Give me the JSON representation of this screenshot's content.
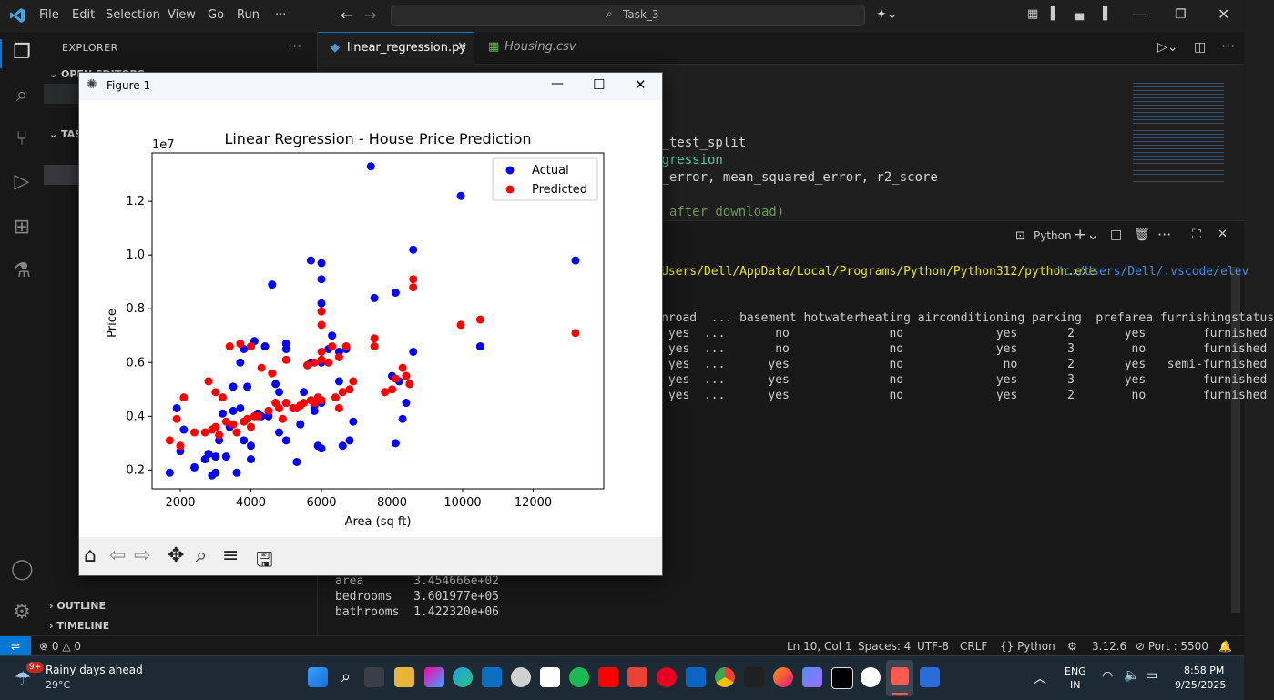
{
  "menubar": {
    "items": [
      "File",
      "Edit",
      "Selection",
      "View",
      "Go",
      "Run",
      "···"
    ],
    "search": "Task_3"
  },
  "sidebar": {
    "title": "EXPLORER",
    "open_editors": "OPEN EDITORS",
    "task_section": "TAS",
    "outline": "OUTLINE",
    "timeline": "TIMELINE"
  },
  "tabs": [
    {
      "label": "linear_regression.py",
      "icon": "python-icon"
    },
    {
      "label": "Housing.csv",
      "icon": "table-icon"
    }
  ],
  "code_lines": [
    "n_test_split",
    "egression",
    "e_error, mean_squared_error, r2_score",
    "",
    "n after download)"
  ],
  "panel": {
    "shell_label": "Python",
    "run_path_a": "Users/Dell/AppData/Local/Programs/Python/Python312/python.exe",
    "run_path_b": "\"c:/Users/Dell/.vscode/elev",
    "table_header": "nroad  ... basement hotwaterheating airconditioning parking  prefarea furnishingstatus",
    "table_rows": [
      " yes  ...       no              no             yes       2       yes        furnished",
      " yes  ...       no              no             yes       3        no        furnished",
      " yes  ...      yes              no              no       2       yes   semi-furnished",
      " yes  ...      yes              no             yes       3       yes        furnished",
      " yes  ...      yes              no             yes       2        no        furnished"
    ],
    "coef_rows": [
      "area       3.454666e+02",
      "bedrooms   3.601977e+05",
      "bathrooms  1.422320e+06"
    ]
  },
  "status": {
    "errors": "0",
    "warnings": "0",
    "ln_col": "Ln 10, Col 1",
    "spaces": "Spaces: 4",
    "encoding": "UTF-8",
    "eol": "CRLF",
    "language": "{} Python",
    "version": "3.12.6",
    "port": "Port : 5500"
  },
  "taskbar": {
    "weather_title": "Rainy days ahead",
    "weather_temp": "29°C",
    "badge": "9+",
    "lang_a": "ENG",
    "lang_b": "IN",
    "time": "8:58 PM",
    "date": "9/25/2025"
  },
  "figure": {
    "window_title": "Figure 1"
  },
  "chart_data": {
    "type": "scatter",
    "title": "Linear Regression - House Price Prediction",
    "xlabel": "Area (sq ft)",
    "ylabel": "Price",
    "y_offset_label": "1e7",
    "xlim": [
      1200,
      14000
    ],
    "ylim": [
      0.13,
      1.38
    ],
    "xticks": [
      2000,
      4000,
      6000,
      8000,
      10000,
      12000
    ],
    "yticks": [
      0.2,
      0.4,
      0.6,
      0.8,
      1.0,
      1.2
    ],
    "yticklabels": [
      "0.2",
      "0.4",
      "0.6",
      "0.8",
      "1.0",
      "1.2"
    ],
    "legend_position": "top-right",
    "series": [
      {
        "name": "Actual",
        "color": "#0000ff",
        "points": [
          [
            1700,
            0.19
          ],
          [
            1900,
            0.43
          ],
          [
            2000,
            0.27
          ],
          [
            2100,
            0.35
          ],
          [
            2400,
            0.21
          ],
          [
            2700,
            0.24
          ],
          [
            2800,
            0.26
          ],
          [
            2900,
            0.18
          ],
          [
            3000,
            0.19
          ],
          [
            3000,
            0.25
          ],
          [
            3100,
            0.31
          ],
          [
            3200,
            0.41
          ],
          [
            3300,
            0.25
          ],
          [
            3400,
            0.36
          ],
          [
            3500,
            0.51
          ],
          [
            3500,
            0.42
          ],
          [
            3600,
            0.19
          ],
          [
            3700,
            0.43
          ],
          [
            3700,
            0.6
          ],
          [
            3800,
            0.65
          ],
          [
            3800,
            0.31
          ],
          [
            3900,
            0.51
          ],
          [
            4000,
            0.29
          ],
          [
            4000,
            0.24
          ],
          [
            4100,
            0.68
          ],
          [
            4200,
            0.41
          ],
          [
            4300,
            0.4
          ],
          [
            4400,
            0.66
          ],
          [
            4500,
            0.42
          ],
          [
            4500,
            0.4
          ],
          [
            4600,
            0.89
          ],
          [
            4700,
            0.52
          ],
          [
            4800,
            0.34
          ],
          [
            4800,
            0.49
          ],
          [
            5000,
            0.45
          ],
          [
            5000,
            0.31
          ],
          [
            5000,
            0.65
          ],
          [
            5000,
            0.67
          ],
          [
            5200,
            0.43
          ],
          [
            5300,
            0.23
          ],
          [
            5400,
            0.37
          ],
          [
            5500,
            0.49
          ],
          [
            5700,
            0.6
          ],
          [
            5700,
            0.98
          ],
          [
            5800,
            0.42
          ],
          [
            5800,
            0.44
          ],
          [
            5900,
            0.29
          ],
          [
            6000,
            0.97
          ],
          [
            6000,
            0.91
          ],
          [
            6000,
            0.82
          ],
          [
            6000,
            0.6
          ],
          [
            6000,
            0.45
          ],
          [
            6000,
            0.28
          ],
          [
            6200,
            0.65
          ],
          [
            6300,
            0.7
          ],
          [
            6500,
            0.64
          ],
          [
            6500,
            0.53
          ],
          [
            6600,
            0.29
          ],
          [
            6700,
            0.65
          ],
          [
            6800,
            0.31
          ],
          [
            6900,
            0.38
          ],
          [
            7400,
            1.33
          ],
          [
            7500,
            0.84
          ],
          [
            7800,
            0.49
          ],
          [
            8000,
            0.55
          ],
          [
            8100,
            0.86
          ],
          [
            8100,
            0.3
          ],
          [
            8200,
            0.53
          ],
          [
            8300,
            0.39
          ],
          [
            8400,
            0.45
          ],
          [
            8500,
            0.52
          ],
          [
            8600,
            0.64
          ],
          [
            8600,
            1.02
          ],
          [
            9950,
            1.22
          ],
          [
            10500,
            0.66
          ],
          [
            13200,
            0.98
          ]
        ]
      },
      {
        "name": "Predicted",
        "color": "#ff0000",
        "points": [
          [
            1700,
            0.31
          ],
          [
            1900,
            0.39
          ],
          [
            2000,
            0.29
          ],
          [
            2100,
            0.47
          ],
          [
            2400,
            0.34
          ],
          [
            2700,
            0.34
          ],
          [
            2800,
            0.53
          ],
          [
            2900,
            0.35
          ],
          [
            3000,
            0.36
          ],
          [
            3000,
            0.49
          ],
          [
            3100,
            0.33
          ],
          [
            3200,
            0.47
          ],
          [
            3300,
            0.38
          ],
          [
            3400,
            0.66
          ],
          [
            3500,
            0.37
          ],
          [
            3600,
            0.34
          ],
          [
            3700,
            0.67
          ],
          [
            3800,
            0.38
          ],
          [
            3900,
            0.39
          ],
          [
            4000,
            0.36
          ],
          [
            4000,
            0.66
          ],
          [
            4100,
            0.4
          ],
          [
            4200,
            0.4
          ],
          [
            4300,
            0.58
          ],
          [
            4500,
            0.42
          ],
          [
            4600,
            0.56
          ],
          [
            4700,
            0.45
          ],
          [
            4800,
            0.43
          ],
          [
            4900,
            0.39
          ],
          [
            5000,
            0.45
          ],
          [
            5000,
            0.61
          ],
          [
            5200,
            0.43
          ],
          [
            5300,
            0.43
          ],
          [
            5400,
            0.44
          ],
          [
            5500,
            0.45
          ],
          [
            5600,
            0.59
          ],
          [
            5700,
            0.46
          ],
          [
            5800,
            0.6
          ],
          [
            5800,
            0.45
          ],
          [
            5900,
            0.47
          ],
          [
            6000,
            0.79
          ],
          [
            6000,
            0.74
          ],
          [
            6000,
            0.64
          ],
          [
            6000,
            0.61
          ],
          [
            6000,
            0.46
          ],
          [
            6200,
            0.6
          ],
          [
            6300,
            0.66
          ],
          [
            6400,
            0.47
          ],
          [
            6500,
            0.62
          ],
          [
            6500,
            0.43
          ],
          [
            6600,
            0.49
          ],
          [
            6700,
            0.66
          ],
          [
            6800,
            0.5
          ],
          [
            6900,
            0.53
          ],
          [
            7500,
            0.69
          ],
          [
            7500,
            0.66
          ],
          [
            7800,
            0.49
          ],
          [
            8000,
            0.5
          ],
          [
            8100,
            0.54
          ],
          [
            8300,
            0.58
          ],
          [
            8400,
            0.55
          ],
          [
            8500,
            0.52
          ],
          [
            8600,
            0.88
          ],
          [
            8600,
            0.91
          ],
          [
            9950,
            0.74
          ],
          [
            10500,
            0.76
          ],
          [
            13200,
            0.71
          ]
        ]
      }
    ]
  }
}
